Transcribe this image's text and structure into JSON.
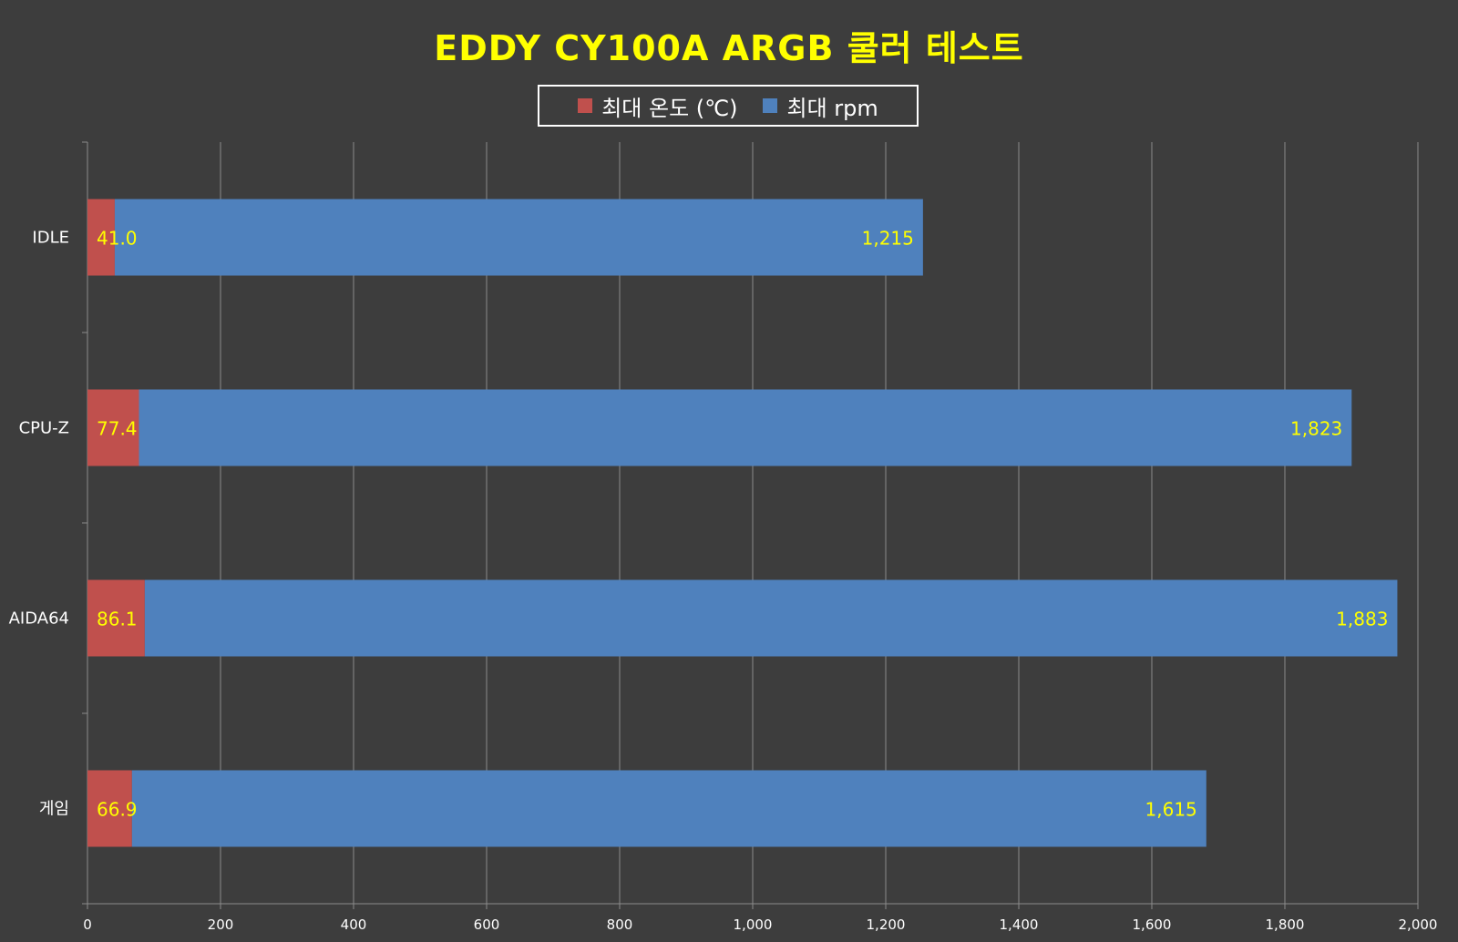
{
  "chart_data": {
    "type": "bar",
    "orientation": "horizontal",
    "stacked": true,
    "title": "EDDY CY100A ARGB 쿨러 테스트",
    "categories": [
      "IDLE",
      "CPU-Z",
      "AIDA64",
      "게임"
    ],
    "series": [
      {
        "name": "최대 온도 (℃)",
        "color": "#c0504d",
        "values": [
          41.0,
          77.4,
          86.1,
          66.9
        ],
        "labels": [
          "41.0",
          "77.4",
          "86.1",
          "66.9"
        ]
      },
      {
        "name": "최대 rpm",
        "color": "#4f81bd",
        "values": [
          1215,
          1823,
          1883,
          1615
        ],
        "labels": [
          "1,215",
          "1,823",
          "1,883",
          "1,615"
        ]
      }
    ],
    "xlim": [
      0,
      2000
    ],
    "xticks": [
      0,
      200,
      400,
      600,
      800,
      1000,
      1200,
      1400,
      1600,
      1800,
      2000
    ],
    "xtick_labels": [
      "0",
      "200",
      "400",
      "600",
      "800",
      "1,000",
      "1,200",
      "1,400",
      "1,600",
      "1,800",
      "2,000"
    ],
    "grid": true,
    "legend_position": "top"
  }
}
